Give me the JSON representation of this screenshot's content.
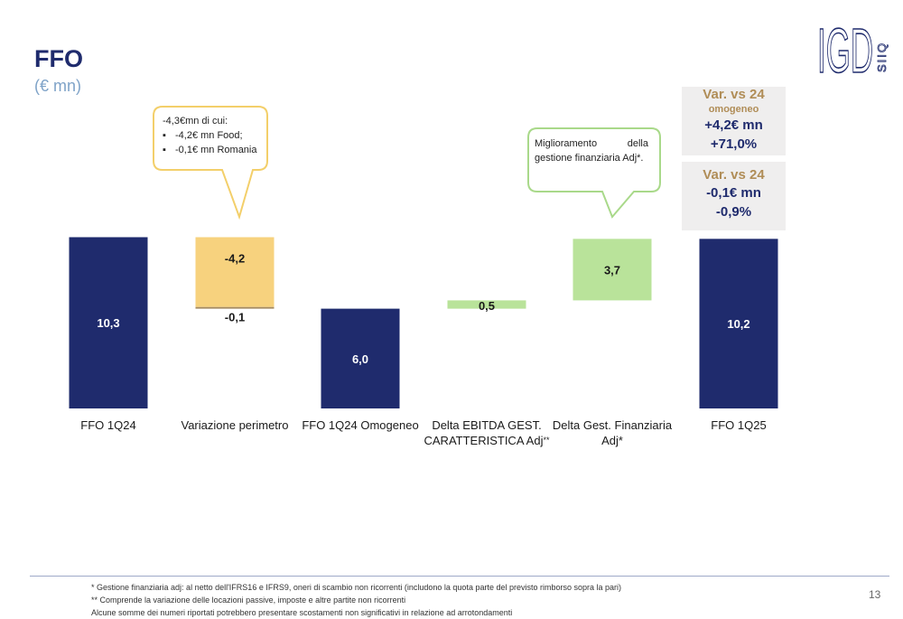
{
  "header": {
    "title": "FFO",
    "subtitle": "(€ mn)"
  },
  "logo": {
    "text": "IGD",
    "side_text": "SIIQ"
  },
  "chart_data": {
    "type": "waterfall",
    "categories": [
      "FFO 1Q24",
      "Variazione perimetro",
      "FFO 1Q24 Omogeneo",
      "Delta EBITDA GEST. CARATTERISTICA Adj**",
      "Delta Gest. Finanziaria Adj*",
      "FFO 1Q25"
    ],
    "steps": [
      {
        "category": "FFO 1Q24",
        "kind": "total",
        "value": 10.3,
        "label": "10,3",
        "color": "#1f2b6d"
      },
      {
        "category": "Variazione perimetro",
        "kind": "delta",
        "value": -4.2,
        "label": "-4,2",
        "color": "#f7d27e"
      },
      {
        "category": "Variazione perimetro",
        "kind": "delta",
        "value": -0.1,
        "label": "-0,1",
        "color": "#a58a5f"
      },
      {
        "category": "FFO 1Q24 Omogeneo",
        "kind": "total",
        "value": 6.0,
        "label": "6,0",
        "color": "#1f2b6d"
      },
      {
        "category": "Delta EBITDA GEST. CARATTERISTICA Adj**",
        "kind": "delta",
        "value": 0.5,
        "label": "0,5",
        "color": "#b9e39a"
      },
      {
        "category": "Delta Gest. Finanziaria Adj*",
        "kind": "delta",
        "value": 3.7,
        "label": "3,7",
        "color": "#b9e39a"
      },
      {
        "category": "FFO 1Q25",
        "kind": "total",
        "value": 10.2,
        "label": "10,2",
        "color": "#1f2b6d"
      }
    ]
  },
  "category_labels": [
    {
      "line1": "FFO 1Q24",
      "line2": "",
      "sup": ""
    },
    {
      "line1": "Variazione perimetro",
      "line2": "",
      "sup": ""
    },
    {
      "line1": "FFO 1Q24 Omogeneo",
      "line2": "",
      "sup": ""
    },
    {
      "line1": "Delta EBITDA GEST.",
      "line2": "CARATTERISTICA Adj",
      "sup": "**"
    },
    {
      "line1": "Delta Gest. Finanziaria",
      "line2": "Adj*",
      "sup": ""
    },
    {
      "line1": "FFO 1Q25",
      "line2": "",
      "sup": ""
    }
  ],
  "callouts": {
    "perimetro": {
      "heading": "-4,3€mn di cui:",
      "items": [
        "-4,2€ mn Food;",
        "-0,1€ mn Romania"
      ],
      "border": "#f3cf6a"
    },
    "finanziaria": {
      "text1_a": "Miglioramento",
      "text1_b": "della",
      "text2": "gestione finanziaria Adj*.",
      "border": "#a9d98a"
    }
  },
  "variance_boxes": [
    {
      "head": "Var. vs 24",
      "sub": "omogeneo",
      "line1": "+4,2€ mn",
      "line2": "+71,0%"
    },
    {
      "head": "Var. vs 24",
      "sub": "",
      "line1": "-0,1€ mn",
      "line2": "-0,9%"
    }
  ],
  "footnotes": [
    "* Gestione finanziaria adj: al netto dell'IFRS16 e IFRS9, oneri di scambio non ricorrenti (includono la quota parte del previsto rimborso sopra la pari)",
    "** Comprende la variazione delle locazioni passive, imposte e altre partite non ricorrenti",
    "Alcune somme dei numeri riportati potrebbero presentare scostamenti non significativi in relazione ad arrotondamenti"
  ],
  "page_number": "13"
}
